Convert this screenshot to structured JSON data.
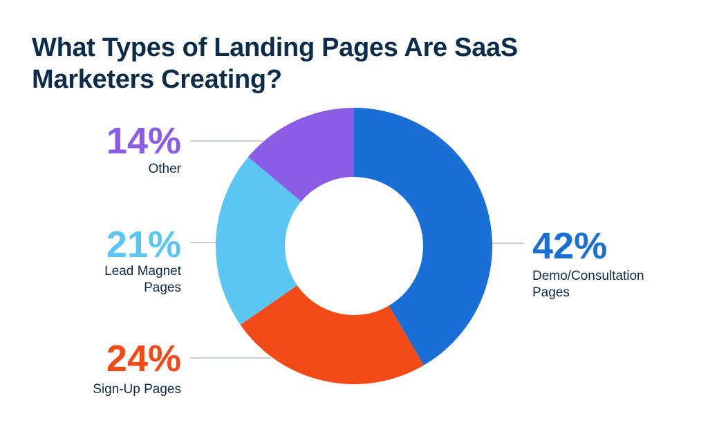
{
  "title": "What Types of Landing Pages Are SaaS Marketers Creating?",
  "chart_data": {
    "type": "pie",
    "title": "What Types of Landing Pages Are SaaS Marketers Creating?",
    "donut": true,
    "slices": [
      {
        "value": 42,
        "display": "42%",
        "label_lines": [
          "Demo/Consultation",
          "Pages"
        ],
        "color": "#1a6fd6"
      },
      {
        "value": 24,
        "display": "24%",
        "label_lines": [
          "Sign-Up Pages"
        ],
        "color": "#f24a16"
      },
      {
        "value": 21,
        "display": "21%",
        "label_lines": [
          "Lead Magnet",
          "Pages"
        ],
        "color": "#5bc6f2"
      },
      {
        "value": 14,
        "display": "14%",
        "label_lines": [
          "Other"
        ],
        "color": "#8b5ce6"
      }
    ],
    "leader_color": "#c9cdd3"
  }
}
